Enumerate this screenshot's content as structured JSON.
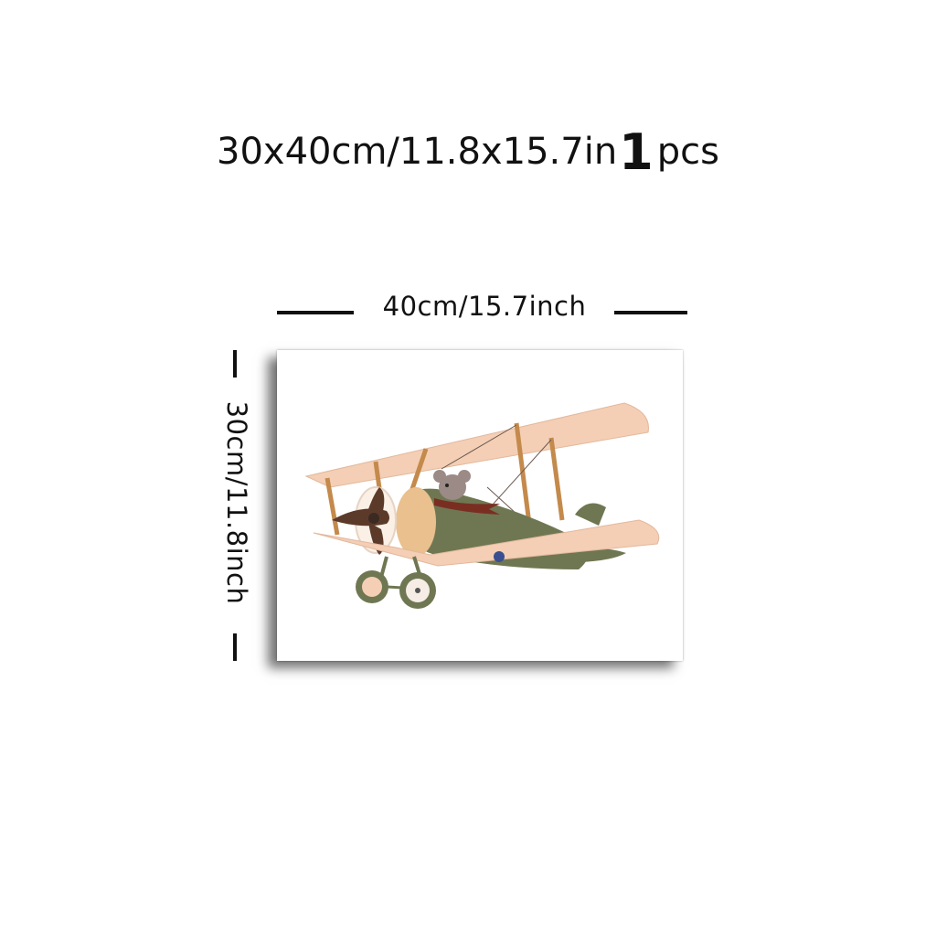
{
  "headline": {
    "size_text": "30x40cm/11.8x15.7in",
    "quantity": "1",
    "unit": "pcs"
  },
  "dimensions": {
    "width_label": "40cm/15.7inch",
    "height_label": "30cm/11.8inch"
  },
  "artwork": {
    "subject": "biplane-with-mouse-pilot-icon",
    "colors": {
      "wing": "#f4cfb5",
      "wing_shade": "#e2b89c",
      "fuselage": "#6f7752",
      "strut": "#c48a4c",
      "propeller": "#5c3a2a",
      "scarf": "#7a2e22",
      "mouse": "#9b8a86",
      "roundel": "#3a4f8f"
    }
  }
}
